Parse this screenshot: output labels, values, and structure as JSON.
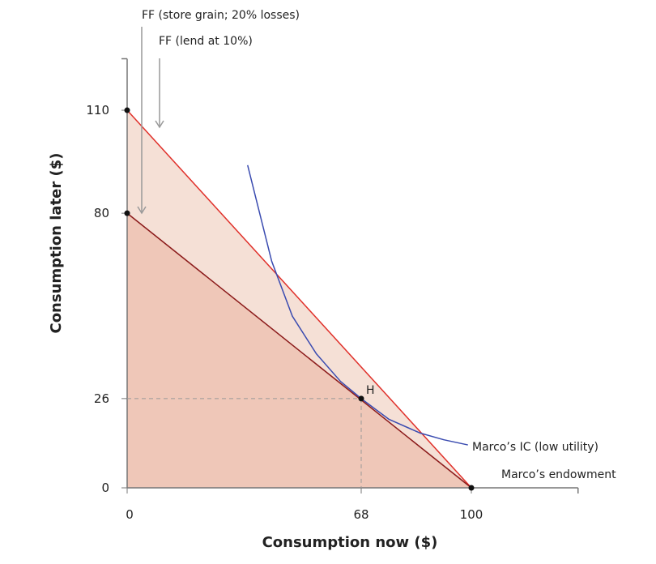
{
  "chart_data": {
    "type": "line",
    "xlabel": "Consumption now ($)",
    "ylabel": "Consumption later ($)",
    "xlim": [
      0,
      131
    ],
    "ylim": [
      0,
      125
    ],
    "x_ticks": [
      0,
      68,
      100
    ],
    "y_ticks": [
      0,
      26,
      80,
      110
    ],
    "grid": false,
    "series": [
      {
        "name": "FF (lend at 10%)",
        "points": [
          [
            0,
            110
          ],
          [
            100,
            0
          ]
        ],
        "color": "#e0302a"
      },
      {
        "name": "FF (store grain; 20% losses)",
        "points": [
          [
            0,
            80
          ],
          [
            100,
            0
          ]
        ],
        "color": "#8b1a1a"
      },
      {
        "name": "Marco’s IC (low utility)",
        "color": "#3a4bb0",
        "points": [
          [
            35,
            94
          ],
          [
            38,
            82
          ],
          [
            42,
            66
          ],
          [
            48,
            50
          ],
          [
            55,
            39
          ],
          [
            62,
            31
          ],
          [
            68,
            26
          ],
          [
            76,
            20
          ],
          [
            85,
            16
          ],
          [
            92,
            14
          ],
          [
            99,
            12.5
          ]
        ]
      }
    ],
    "fills": [
      {
        "region": "lend at 10% feasible set",
        "color": "#f5e0d6"
      },
      {
        "region": "store grain feasible set",
        "color": "#efc7b8"
      }
    ],
    "points": [
      {
        "label": "",
        "x": 0,
        "y": 110
      },
      {
        "label": "",
        "x": 0,
        "y": 80
      },
      {
        "label": "H",
        "x": 68,
        "y": 26
      },
      {
        "label": "Marco’s endowment",
        "x": 100,
        "y": 0
      }
    ],
    "annotations": {
      "ff_store": "FF (store grain; 20% losses)",
      "ff_lend": "FF (lend at 10%)",
      "ic": "Marco’s IC (low utility)",
      "endowment": "Marco’s endowment",
      "h": "H"
    }
  }
}
